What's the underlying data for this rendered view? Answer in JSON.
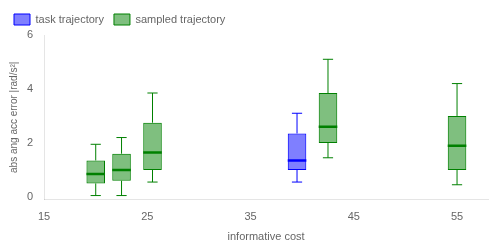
{
  "chart_data": {
    "type": "box",
    "title": "",
    "xlabel": "informative cost",
    "ylabel": "abs ang acc error |rad/s²|",
    "xlim": [
      15,
      58
    ],
    "ylim": [
      -0.1,
      6
    ],
    "xticks": [
      15,
      25,
      35,
      45,
      55
    ],
    "yticks": [
      0,
      2,
      4,
      6
    ],
    "grid": false,
    "legend": "upper left",
    "series": [
      {
        "name": "task trajectory",
        "color": "#0000ff",
        "x": [
          39.5
        ],
        "whisker_low": [
          0.55
        ],
        "q1": [
          1.0
        ],
        "median": [
          1.35
        ],
        "q3": [
          2.35
        ],
        "whisker_high": [
          3.1
        ]
      },
      {
        "name": "sampled trajectory",
        "color": "#008000",
        "x": [
          20,
          22.5,
          25.5,
          42.5,
          55
        ],
        "whisker_low": [
          0.05,
          0.05,
          0.55,
          1.45,
          0.45
        ],
        "q1": [
          0.5,
          0.6,
          1.0,
          2.0,
          1.0
        ],
        "median": [
          0.85,
          1.0,
          1.65,
          2.6,
          1.9
        ],
        "q3": [
          1.35,
          1.6,
          2.75,
          3.85,
          3.0
        ],
        "whisker_high": [
          1.95,
          2.2,
          3.85,
          5.1,
          4.2
        ]
      }
    ]
  }
}
